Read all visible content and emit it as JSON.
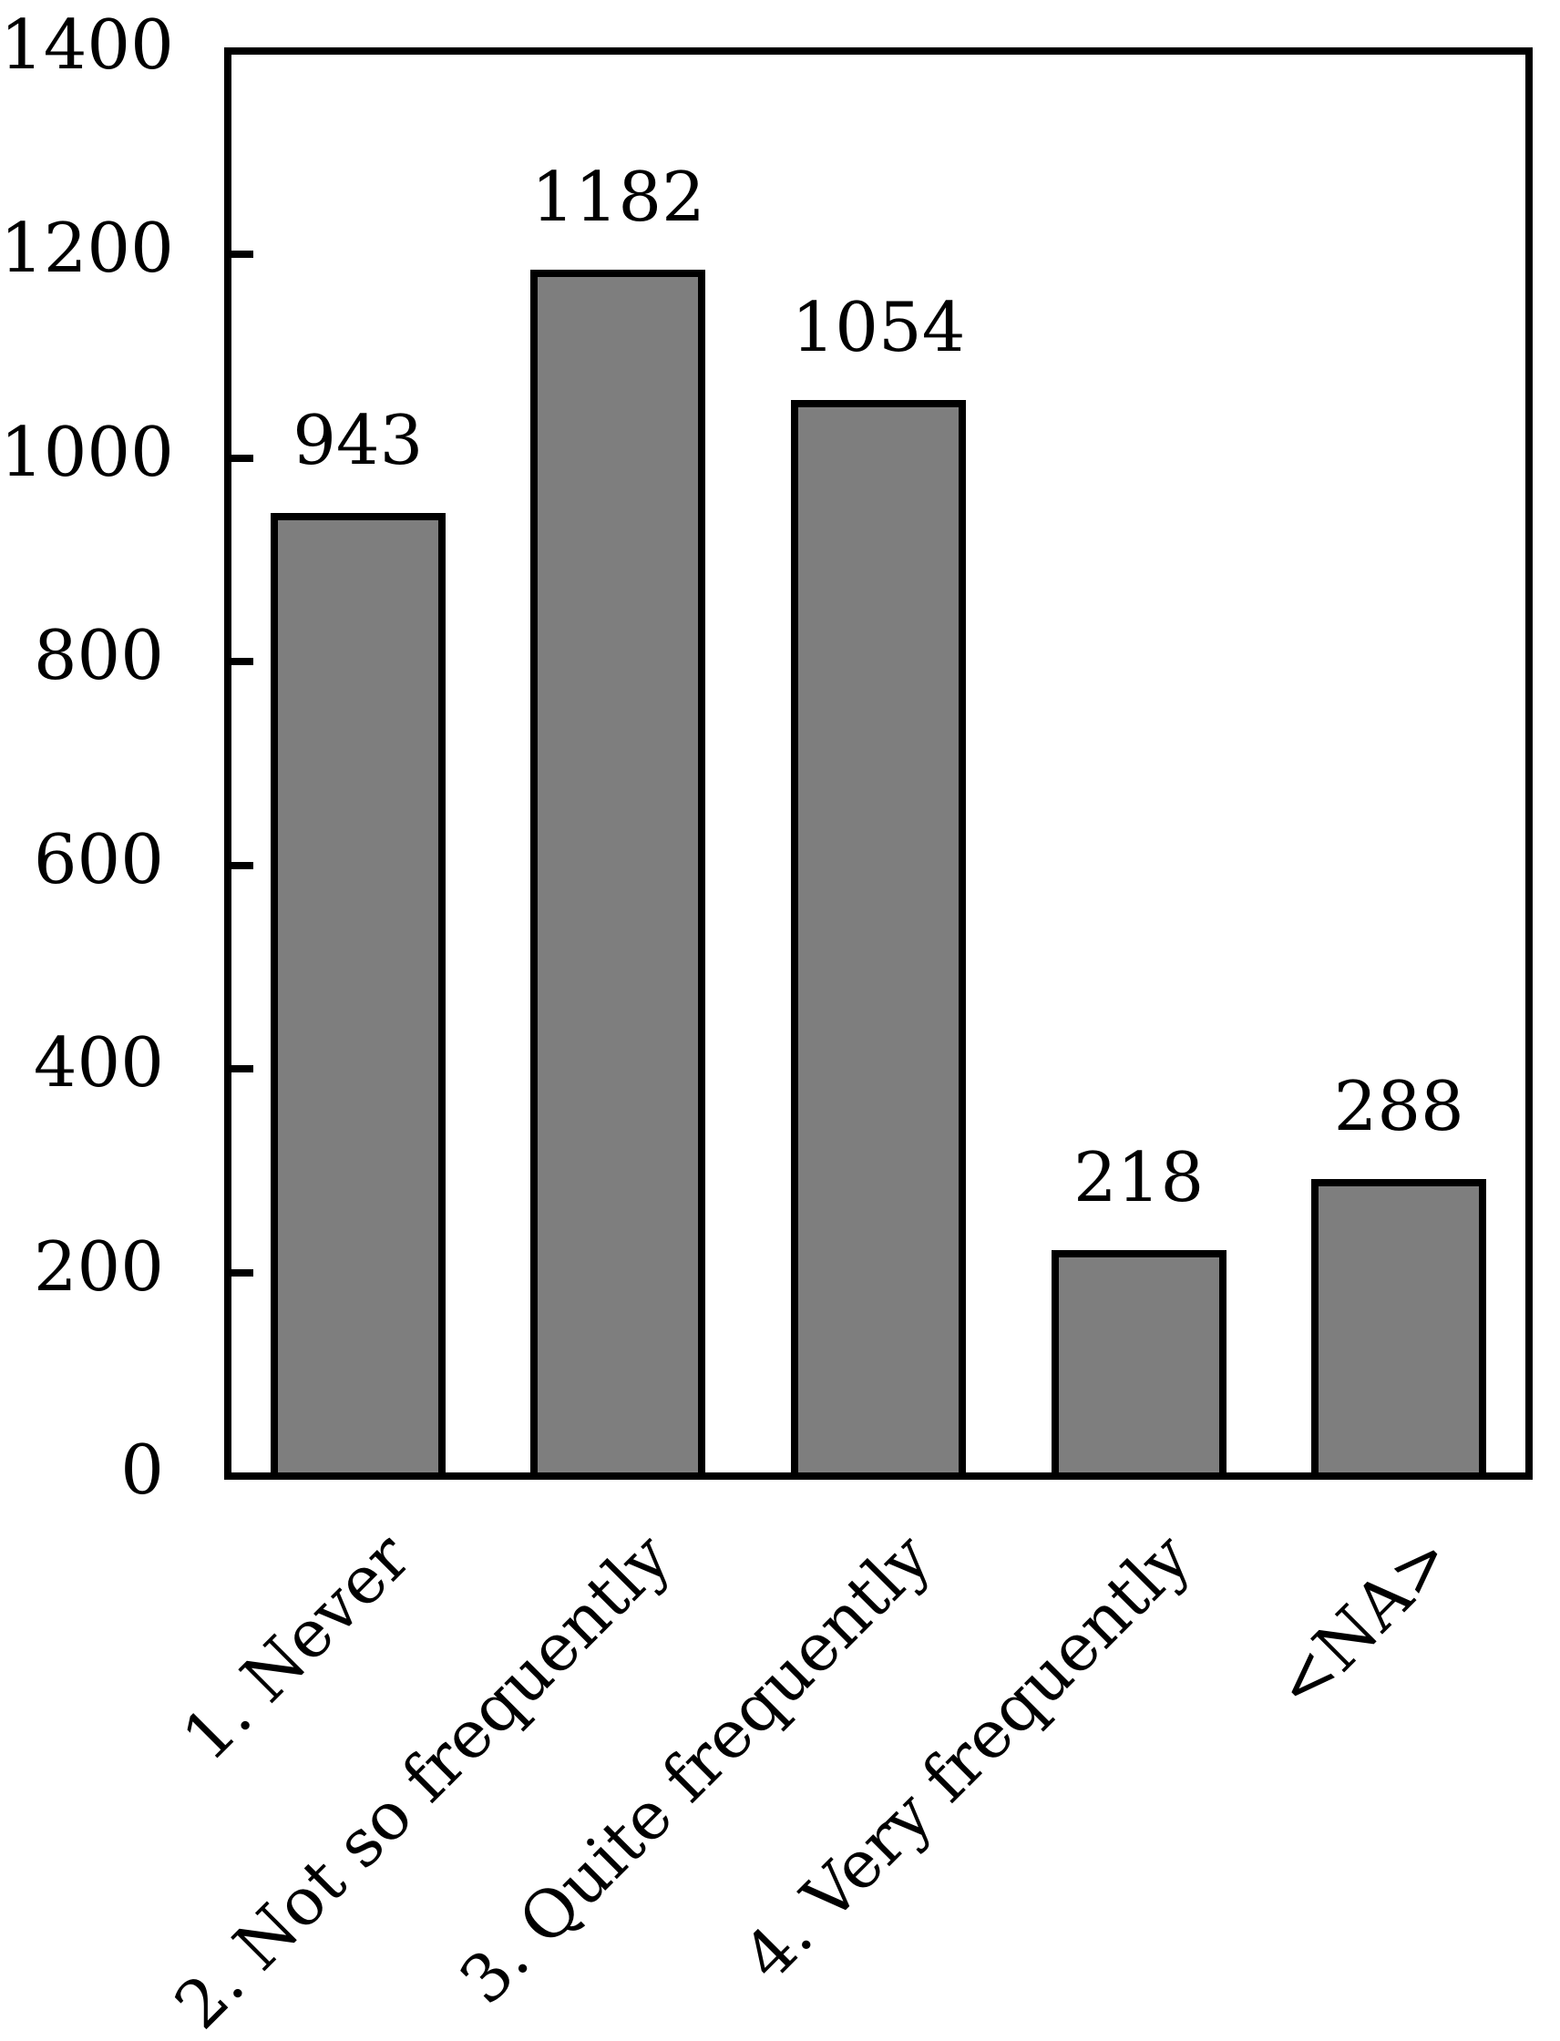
{
  "chart_data": {
    "type": "bar",
    "categories": [
      "1. Never",
      "2. Not so frequently",
      "3. Quite frequently",
      "4. Very frequently",
      "<NA>"
    ],
    "values": [
      943,
      1182,
      1054,
      218,
      288
    ],
    "bar_value_labels": [
      "943",
      "1182",
      "1054",
      "218",
      "288"
    ],
    "title": "",
    "xlabel": "",
    "ylabel": "",
    "ylim": [
      0,
      1400
    ],
    "y_ticks": [
      0,
      200,
      400,
      600,
      800,
      1000,
      1200,
      1400
    ],
    "x_tick_rotation_deg": 45,
    "grid": false,
    "legend": false,
    "bar_fill_color": "#7e7e7e",
    "bar_edge_color": "#000000",
    "frame_color": "#000000",
    "background_color": "#ffffff"
  }
}
